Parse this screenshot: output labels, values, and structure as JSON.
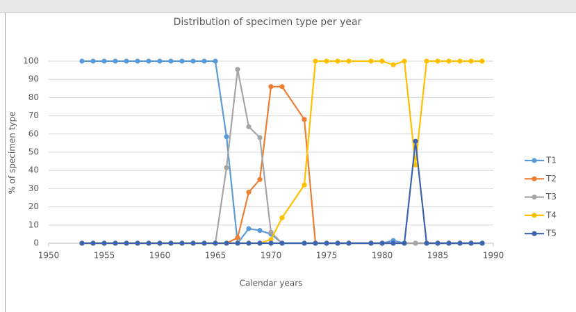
{
  "chart_data": {
    "type": "line",
    "title": "Distribution of specimen type per year",
    "x_label": "Calendar years",
    "y_label": "% of specimen type",
    "x": [
      1953,
      1954,
      1955,
      1956,
      1957,
      1958,
      1959,
      1960,
      1961,
      1962,
      1963,
      1964,
      1965,
      1966,
      1967,
      1968,
      1969,
      1970,
      1971,
      1973,
      1974,
      1975,
      1976,
      1977,
      1979,
      1980,
      1981,
      1982,
      1983,
      1984,
      1985,
      1986,
      1987,
      1988,
      1989
    ],
    "series": [
      {
        "name": "T1",
        "color": "#5b9bd5",
        "values": [
          100,
          100,
          100,
          100,
          100,
          100,
          100,
          100,
          100,
          100,
          100,
          100,
          100,
          58.5,
          0,
          8,
          7,
          5,
          0,
          0,
          0,
          0,
          0,
          0,
          0,
          0,
          1.5,
          0,
          0,
          0,
          0,
          0,
          0,
          0,
          0
        ]
      },
      {
        "name": "T2",
        "color": "#ed7d31",
        "values": [
          0,
          0,
          0,
          0,
          0,
          0,
          0,
          0,
          0,
          0,
          0,
          0,
          0,
          0,
          3,
          28,
          35,
          86,
          86,
          68,
          0,
          0,
          0,
          0,
          0,
          0,
          0,
          0,
          0,
          0,
          0,
          0,
          0,
          0,
          0
        ]
      },
      {
        "name": "T3",
        "color": "#a5a5a5",
        "values": [
          0,
          0,
          0,
          0,
          0,
          0,
          0,
          0,
          0,
          0,
          0,
          0,
          0,
          41.5,
          95.5,
          64,
          58,
          6,
          0,
          0,
          0,
          0,
          0,
          0,
          0,
          0,
          0,
          0,
          0,
          0,
          0,
          0,
          0,
          0,
          0
        ]
      },
      {
        "name": "T4",
        "color": "#ffc000",
        "values": [
          0,
          0,
          0,
          0,
          0,
          0,
          0,
          0,
          0,
          0,
          0,
          0,
          0,
          0,
          0,
          0,
          0,
          2,
          14,
          32,
          100,
          100,
          100,
          100,
          100,
          100,
          98,
          100,
          43,
          100,
          100,
          100,
          100,
          100,
          100
        ]
      },
      {
        "name": "T5",
        "color": "#3b64ad",
        "values": [
          0,
          0,
          0,
          0,
          0,
          0,
          0,
          0,
          0,
          0,
          0,
          0,
          0,
          0,
          0,
          0,
          0,
          0,
          0,
          0,
          0,
          0,
          0,
          0,
          0,
          0,
          0,
          0,
          56,
          0,
          0,
          0,
          0,
          0,
          0
        ]
      }
    ],
    "xlim": [
      1950,
      1990
    ],
    "xticks": [
      1950,
      1955,
      1960,
      1965,
      1970,
      1975,
      1980,
      1985,
      1990
    ],
    "ylim": [
      0,
      100
    ],
    "yticks": [
      0,
      10,
      20,
      30,
      40,
      50,
      60,
      70,
      80,
      90,
      100
    ],
    "grid": true,
    "legend": "right"
  }
}
